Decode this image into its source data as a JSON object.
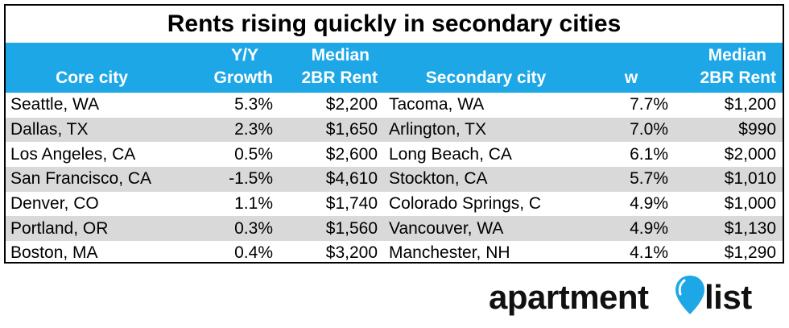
{
  "title": "Rents rising quickly in secondary cities",
  "header": {
    "core_city": [
      "",
      "Core city"
    ],
    "yy_growth": [
      "Y/Y",
      "Growth"
    ],
    "median_core": [
      "Median",
      "2BR Rent"
    ],
    "secondary_city": [
      "",
      "Secondary city"
    ],
    "w": [
      "",
      "w"
    ],
    "median_secondary": [
      "Median",
      "2BR Rent"
    ]
  },
  "rows": [
    {
      "core_city": "Seattle, WA",
      "yy": "5.3%",
      "core_rent": "$2,200",
      "secondary_city": "Tacoma, WA",
      "w": "7.7%",
      "secondary_rent": "$1,200"
    },
    {
      "core_city": "Dallas, TX",
      "yy": "2.3%",
      "core_rent": "$1,650",
      "secondary_city": "Arlington, TX",
      "w": "7.0%",
      "secondary_rent": "$990"
    },
    {
      "core_city": "Los Angeles, CA",
      "yy": "0.5%",
      "core_rent": "$2,600",
      "secondary_city": "Long Beach, CA",
      "w": "6.1%",
      "secondary_rent": "$2,000"
    },
    {
      "core_city": "San Francisco, CA",
      "yy": "-1.5%",
      "core_rent": "$4,610",
      "secondary_city": "Stockton, CA",
      "w": "5.7%",
      "secondary_rent": "$1,010"
    },
    {
      "core_city": "Denver, CO",
      "yy": "1.1%",
      "core_rent": "$1,740",
      "secondary_city": "Colorado Springs, C",
      "w": "4.9%",
      "secondary_rent": "$1,000"
    },
    {
      "core_city": "Portland, OR",
      "yy": "0.3%",
      "core_rent": "$1,560",
      "secondary_city": "Vancouver, WA",
      "w": "4.9%",
      "secondary_rent": "$1,130"
    },
    {
      "core_city": "Boston, MA",
      "yy": "0.4%",
      "core_rent": "$3,200",
      "secondary_city": "Manchester, NH",
      "w": "4.1%",
      "secondary_rent": "$1,290"
    }
  ],
  "logo": {
    "word1": "apartment",
    "word2": "list",
    "icon": "location-pin-icon"
  },
  "colors": {
    "header_bg": "#1ea7e6",
    "alt_row_bg": "#d9d9d9",
    "pin": "#1ea7e6"
  }
}
